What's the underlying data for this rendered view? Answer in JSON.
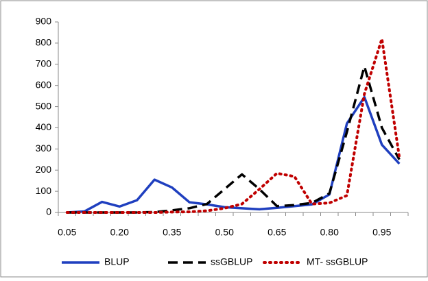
{
  "chart_data": {
    "type": "line",
    "categories": [
      "0.05",
      null,
      null,
      "0.20",
      null,
      null,
      "0.35",
      null,
      null,
      "0.50",
      null,
      null,
      "0.65",
      null,
      null,
      "0.80",
      null,
      null,
      "0.95",
      null
    ],
    "series": [
      {
        "name": "BLUP",
        "color": "#1f3fbf",
        "dash": "solid",
        "values": [
          0,
          5,
          50,
          28,
          58,
          155,
          118,
          48,
          38,
          25,
          20,
          15,
          22,
          30,
          38,
          85,
          420,
          545,
          320,
          230
        ]
      },
      {
        "name": "ssGBLUP",
        "color": "#000000",
        "dash": "dash",
        "values": [
          0,
          0,
          0,
          0,
          0,
          2,
          10,
          20,
          40,
          110,
          180,
          110,
          30,
          35,
          45,
          90,
          380,
          690,
          400,
          250
        ]
      },
      {
        "name": "MT- ssGBLUP",
        "color": "#c00000",
        "dash": "dot",
        "values": [
          0,
          0,
          0,
          0,
          0,
          0,
          2,
          3,
          8,
          20,
          40,
          110,
          185,
          170,
          40,
          45,
          80,
          560,
          820,
          260
        ]
      }
    ],
    "ylim": [
      0,
      900
    ],
    "yticks": [
      0,
      100,
      200,
      300,
      400,
      500,
      600,
      700,
      800,
      900
    ],
    "legend": "bottom"
  }
}
